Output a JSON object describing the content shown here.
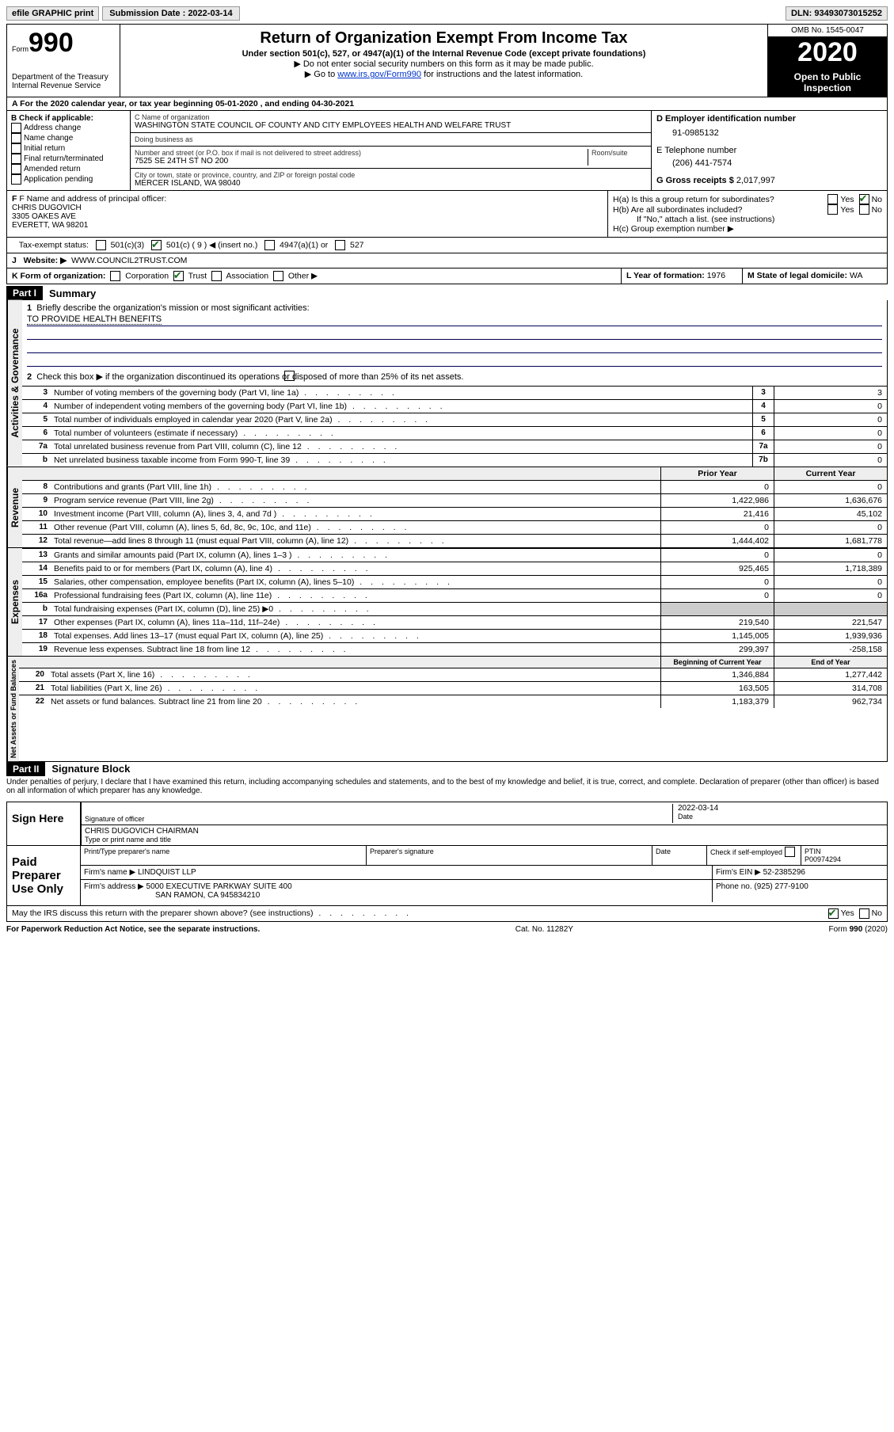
{
  "topbar": {
    "efile": "efile GRAPHIC print",
    "submission_label": "Submission Date : 2022-03-14",
    "dln": "DLN: 93493073015252"
  },
  "header": {
    "form_label": "Form",
    "form_number": "990",
    "dept": "Department of the Treasury\nInternal Revenue Service",
    "title": "Return of Organization Exempt From Income Tax",
    "subtitle": "Under section 501(c), 527, or 4947(a)(1) of the Internal Revenue Code (except private foundations)",
    "note1": "▶ Do not enter social security numbers on this form as it may be made public.",
    "note2_prefix": "▶ Go to ",
    "note2_link": "www.irs.gov/Form990",
    "note2_suffix": " for instructions and the latest information.",
    "omb": "OMB No. 1545-0047",
    "year": "2020",
    "open": "Open to Public Inspection"
  },
  "lineA": "A For the 2020 calendar year, or tax year beginning 05-01-2020   , and ending 04-30-2021",
  "boxB": {
    "label": "B Check if applicable:",
    "items": [
      "Address change",
      "Name change",
      "Initial return",
      "Final return/terminated",
      "Amended return",
      "Application pending"
    ]
  },
  "boxC": {
    "name_label": "C Name of organization",
    "name": "WASHINGTON STATE COUNCIL OF COUNTY AND CITY EMPLOYEES HEALTH AND WELFARE TRUST",
    "dba_label": "Doing business as",
    "dba": "",
    "addr_label": "Number and street (or P.O. box if mail is not delivered to street address)",
    "room_label": "Room/suite",
    "addr": "7525 SE 24TH ST NO 200",
    "city_label": "City or town, state or province, country, and ZIP or foreign postal code",
    "city": "MERCER ISLAND, WA  98040"
  },
  "boxD": {
    "label": "D Employer identification number",
    "val": "91-0985132"
  },
  "boxE": {
    "label": "E Telephone number",
    "val": "(206) 441-7574"
  },
  "boxG": {
    "label": "G Gross receipts $",
    "val": "2,017,997"
  },
  "boxF": {
    "label": "F Name and address of principal officer:",
    "name": "CHRIS DUGOVICH",
    "addr1": "3305 OAKES AVE",
    "addr2": "EVERETT, WA  98201"
  },
  "boxH": {
    "ha": "H(a)  Is this a group return for subordinates?",
    "hb": "H(b)  Are all subordinates included?",
    "hb_note": "If \"No,\" attach a list. (see instructions)",
    "hc": "H(c)  Group exemption number ▶"
  },
  "taxExempt": {
    "label": "Tax-exempt status:",
    "opts": [
      "501(c)(3)",
      "501(c) ( 9 ) ◀ (insert no.)",
      "4947(a)(1) or",
      "527"
    ]
  },
  "boxJ": {
    "label": "J",
    "text": "Website: ▶",
    "val": "WWW.COUNCIL2TRUST.COM"
  },
  "boxK": {
    "label": "K Form of organization:",
    "opts": [
      "Corporation",
      "Trust",
      "Association",
      "Other ▶"
    ]
  },
  "boxL": {
    "label": "L Year of formation:",
    "val": "1976"
  },
  "boxM": {
    "label": "M State of legal domicile:",
    "val": "WA"
  },
  "part1": {
    "num": "Part I",
    "title": "Summary"
  },
  "summary": {
    "q1": "Briefly describe the organization's mission or most significant activities:",
    "mission": "TO PROVIDE HEALTH BENEFITS",
    "q2": "Check this box ▶        if the organization discontinued its operations or disposed of more than 25% of its net assets.",
    "rows_a": [
      {
        "n": "3",
        "d": "Number of voting members of the governing body (Part VI, line 1a)",
        "box": "3",
        "v": "3"
      },
      {
        "n": "4",
        "d": "Number of independent voting members of the governing body (Part VI, line 1b)",
        "box": "4",
        "v": "0"
      },
      {
        "n": "5",
        "d": "Total number of individuals employed in calendar year 2020 (Part V, line 2a)",
        "box": "5",
        "v": "0"
      },
      {
        "n": "6",
        "d": "Total number of volunteers (estimate if necessary)",
        "box": "6",
        "v": "0"
      },
      {
        "n": "7a",
        "d": "Total unrelated business revenue from Part VIII, column (C), line 12",
        "box": "7a",
        "v": "0"
      },
      {
        "n": "b",
        "d": "Net unrelated business taxable income from Form 990-T, line 39",
        "box": "7b",
        "v": "0"
      }
    ],
    "hdr_prior": "Prior Year",
    "hdr_current": "Current Year",
    "rows_rev": [
      {
        "n": "8",
        "d": "Contributions and grants (Part VIII, line 1h)",
        "p": "0",
        "c": "0"
      },
      {
        "n": "9",
        "d": "Program service revenue (Part VIII, line 2g)",
        "p": "1,422,986",
        "c": "1,636,676"
      },
      {
        "n": "10",
        "d": "Investment income (Part VIII, column (A), lines 3, 4, and 7d )",
        "p": "21,416",
        "c": "45,102"
      },
      {
        "n": "11",
        "d": "Other revenue (Part VIII, column (A), lines 5, 6d, 8c, 9c, 10c, and 11e)",
        "p": "0",
        "c": "0"
      },
      {
        "n": "12",
        "d": "Total revenue—add lines 8 through 11 (must equal Part VIII, column (A), line 12)",
        "p": "1,444,402",
        "c": "1,681,778"
      }
    ],
    "rows_exp": [
      {
        "n": "13",
        "d": "Grants and similar amounts paid (Part IX, column (A), lines 1–3 )",
        "p": "0",
        "c": "0"
      },
      {
        "n": "14",
        "d": "Benefits paid to or for members (Part IX, column (A), line 4)",
        "p": "925,465",
        "c": "1,718,389"
      },
      {
        "n": "15",
        "d": "Salaries, other compensation, employee benefits (Part IX, column (A), lines 5–10)",
        "p": "0",
        "c": "0"
      },
      {
        "n": "16a",
        "d": "Professional fundraising fees (Part IX, column (A), line 11e)",
        "p": "0",
        "c": "0"
      },
      {
        "n": "b",
        "d": "Total fundraising expenses (Part IX, column (D), line 25) ▶0",
        "p": "",
        "c": "",
        "shade": true
      },
      {
        "n": "17",
        "d": "Other expenses (Part IX, column (A), lines 11a–11d, 11f–24e)",
        "p": "219,540",
        "c": "221,547"
      },
      {
        "n": "18",
        "d": "Total expenses. Add lines 13–17 (must equal Part IX, column (A), line 25)",
        "p": "1,145,005",
        "c": "1,939,936"
      },
      {
        "n": "19",
        "d": "Revenue less expenses. Subtract line 18 from line 12",
        "p": "299,397",
        "c": "-258,158"
      }
    ],
    "hdr_beg": "Beginning of Current Year",
    "hdr_end": "End of Year",
    "rows_net": [
      {
        "n": "20",
        "d": "Total assets (Part X, line 16)",
        "p": "1,346,884",
        "c": "1,277,442"
      },
      {
        "n": "21",
        "d": "Total liabilities (Part X, line 26)",
        "p": "163,505",
        "c": "314,708"
      },
      {
        "n": "22",
        "d": "Net assets or fund balances. Subtract line 21 from line 20",
        "p": "1,183,379",
        "c": "962,734"
      }
    ],
    "vert_activities": "Activities & Governance",
    "vert_revenue": "Revenue",
    "vert_expenses": "Expenses",
    "vert_net": "Net Assets or Fund Balances"
  },
  "part2": {
    "num": "Part II",
    "title": "Signature Block"
  },
  "penalty": "Under penalties of perjury, I declare that I have examined this return, including accompanying schedules and statements, and to the best of my knowledge and belief, it is true, correct, and complete. Declaration of preparer (other than officer) is based on all information of which preparer has any knowledge.",
  "sign": {
    "here": "Sign Here",
    "sig_officer": "Signature of officer",
    "date": "Date",
    "date_val": "2022-03-14",
    "name_title": "CHRIS DUGOVICH  CHAIRMAN",
    "type_name": "Type or print name and title"
  },
  "paid": {
    "label": "Paid Preparer Use Only",
    "print_name": "Print/Type preparer's name",
    "prep_sig": "Preparer's signature",
    "date": "Date",
    "check": "Check         if self-employed",
    "ptin_label": "PTIN",
    "ptin": "P00974294",
    "firm_name_label": "Firm's name    ▶",
    "firm_name": "LINDQUIST LLP",
    "firm_ein_label": "Firm's EIN ▶",
    "firm_ein": "52-2385296",
    "firm_addr_label": "Firm's address ▶",
    "firm_addr1": "5000 EXECUTIVE PARKWAY SUITE 400",
    "firm_addr2": "SAN RAMON, CA  945834210",
    "phone_label": "Phone no.",
    "phone": "(925) 277-9100"
  },
  "discuss": "May the IRS discuss this return with the preparer shown above? (see instructions)",
  "footer": {
    "left": "For Paperwork Reduction Act Notice, see the separate instructions.",
    "mid": "Cat. No. 11282Y",
    "right": "Form 990 (2020)"
  },
  "yes": "Yes",
  "no": "No"
}
